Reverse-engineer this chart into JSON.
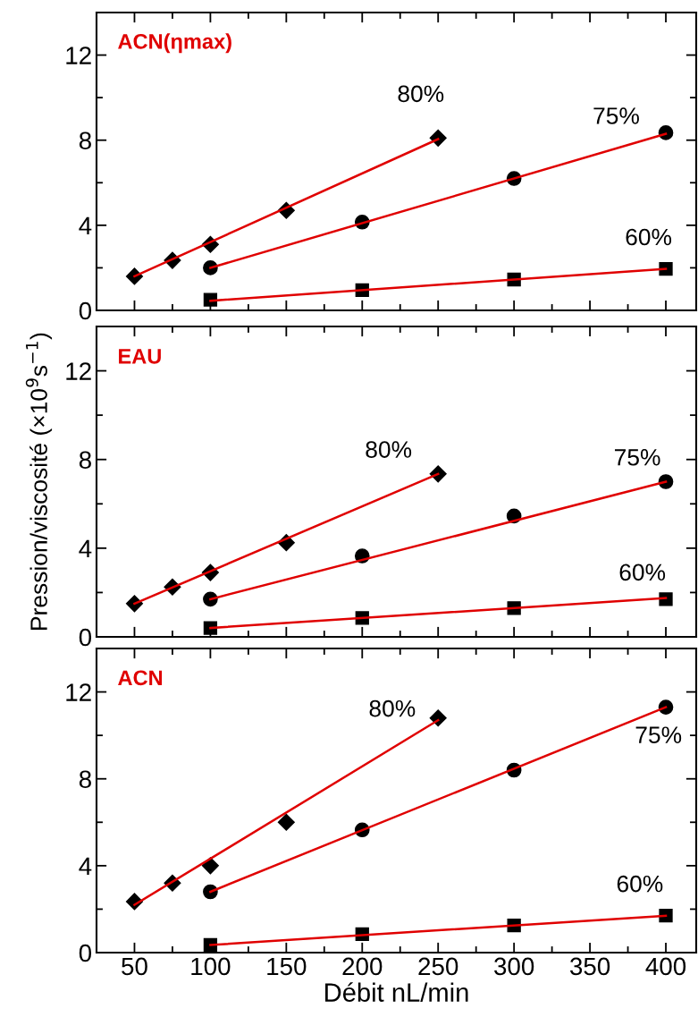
{
  "chart_data": [
    {
      "type": "scatter",
      "title": "ACN(ηmax)",
      "xlim": [
        25,
        420
      ],
      "xticks": [
        50,
        100,
        150,
        200,
        250,
        300,
        350,
        400
      ],
      "ylim": [
        0,
        14
      ],
      "yticks": [
        0,
        4,
        8,
        12
      ],
      "tick_labels": "y",
      "grid": false,
      "series": [
        {
          "name": "80%",
          "marker": "diamond",
          "color": "#000000",
          "x": [
            50,
            75,
            100,
            150,
            250
          ],
          "values": [
            1.6,
            2.35,
            3.1,
            4.7,
            8.1
          ]
        },
        {
          "name": "75%",
          "marker": "circle",
          "color": "#000000",
          "x": [
            100,
            200,
            300,
            400
          ],
          "values": [
            2.0,
            4.15,
            6.2,
            8.35
          ]
        },
        {
          "name": "60%",
          "marker": "square",
          "color": "#000000",
          "x": [
            100,
            200,
            300,
            400
          ],
          "values": [
            0.5,
            0.95,
            1.45,
            1.95
          ]
        },
        {
          "type": "line",
          "color": "#e00000",
          "x": [
            50,
            250
          ],
          "values": [
            1.6,
            8.05
          ]
        },
        {
          "type": "line",
          "color": "#e00000",
          "x": [
            100,
            400
          ],
          "values": [
            2.0,
            8.3
          ]
        },
        {
          "type": "line",
          "color": "#e00000",
          "x": [
            100,
            400
          ],
          "values": [
            0.45,
            1.95
          ]
        }
      ]
    },
    {
      "type": "scatter",
      "title": "EAU",
      "ylabel": "Pression/viscosité (×10$^{9}$s$^{−1}$)",
      "xlim": [
        25,
        420
      ],
      "xticks": [
        50,
        100,
        150,
        200,
        250,
        300,
        350,
        400
      ],
      "ylim": [
        0,
        14
      ],
      "yticks": [
        0,
        4,
        8,
        12
      ],
      "tick_labels": "y",
      "grid": false,
      "series": [
        {
          "name": "80%",
          "marker": "diamond",
          "color": "#000000",
          "x": [
            50,
            75,
            100,
            150,
            250
          ],
          "values": [
            1.5,
            2.25,
            2.9,
            4.25,
            7.35
          ]
        },
        {
          "name": "75%",
          "marker": "circle",
          "color": "#000000",
          "x": [
            100,
            200,
            300,
            400
          ],
          "values": [
            1.7,
            3.65,
            5.45,
            7.0
          ]
        },
        {
          "name": "60%",
          "marker": "square",
          "color": "#000000",
          "x": [
            100,
            200,
            300,
            400
          ],
          "values": [
            0.4,
            0.85,
            1.3,
            1.7
          ]
        },
        {
          "type": "line",
          "color": "#e00000",
          "x": [
            50,
            250
          ],
          "values": [
            1.5,
            7.35
          ]
        },
        {
          "type": "line",
          "color": "#e00000",
          "x": [
            100,
            400
          ],
          "values": [
            1.7,
            7.0
          ]
        },
        {
          "type": "line",
          "color": "#e00000",
          "x": [
            100,
            400
          ],
          "values": [
            0.4,
            1.75
          ]
        }
      ]
    },
    {
      "type": "scatter",
      "title": "ACN",
      "xlabel": "Débit nL/min",
      "xlim": [
        25,
        420
      ],
      "xticks": [
        50,
        100,
        150,
        200,
        250,
        300,
        350,
        400
      ],
      "ylim": [
        0,
        14
      ],
      "yticks": [
        0,
        4,
        8,
        12
      ],
      "grid": false,
      "series": [
        {
          "name": "80%",
          "marker": "diamond",
          "color": "#000000",
          "x": [
            50,
            75,
            100,
            150,
            250
          ],
          "values": [
            2.35,
            3.2,
            4.0,
            6.0,
            10.8
          ]
        },
        {
          "name": "75%",
          "marker": "circle",
          "color": "#000000",
          "x": [
            100,
            200,
            300,
            400
          ],
          "values": [
            2.8,
            5.65,
            8.4,
            11.3
          ]
        },
        {
          "name": "60%",
          "marker": "square",
          "color": "#000000",
          "x": [
            100,
            200,
            300,
            400
          ],
          "values": [
            0.35,
            0.85,
            1.25,
            1.7
          ]
        },
        {
          "type": "line",
          "color": "#e00000",
          "x": [
            50,
            250
          ],
          "values": [
            2.2,
            10.7
          ]
        },
        {
          "type": "line",
          "color": "#e00000",
          "x": [
            100,
            400
          ],
          "values": [
            2.8,
            11.3
          ]
        },
        {
          "type": "line",
          "color": "#e00000",
          "x": [
            100,
            400
          ],
          "values": [
            0.35,
            1.7
          ]
        }
      ]
    }
  ]
}
